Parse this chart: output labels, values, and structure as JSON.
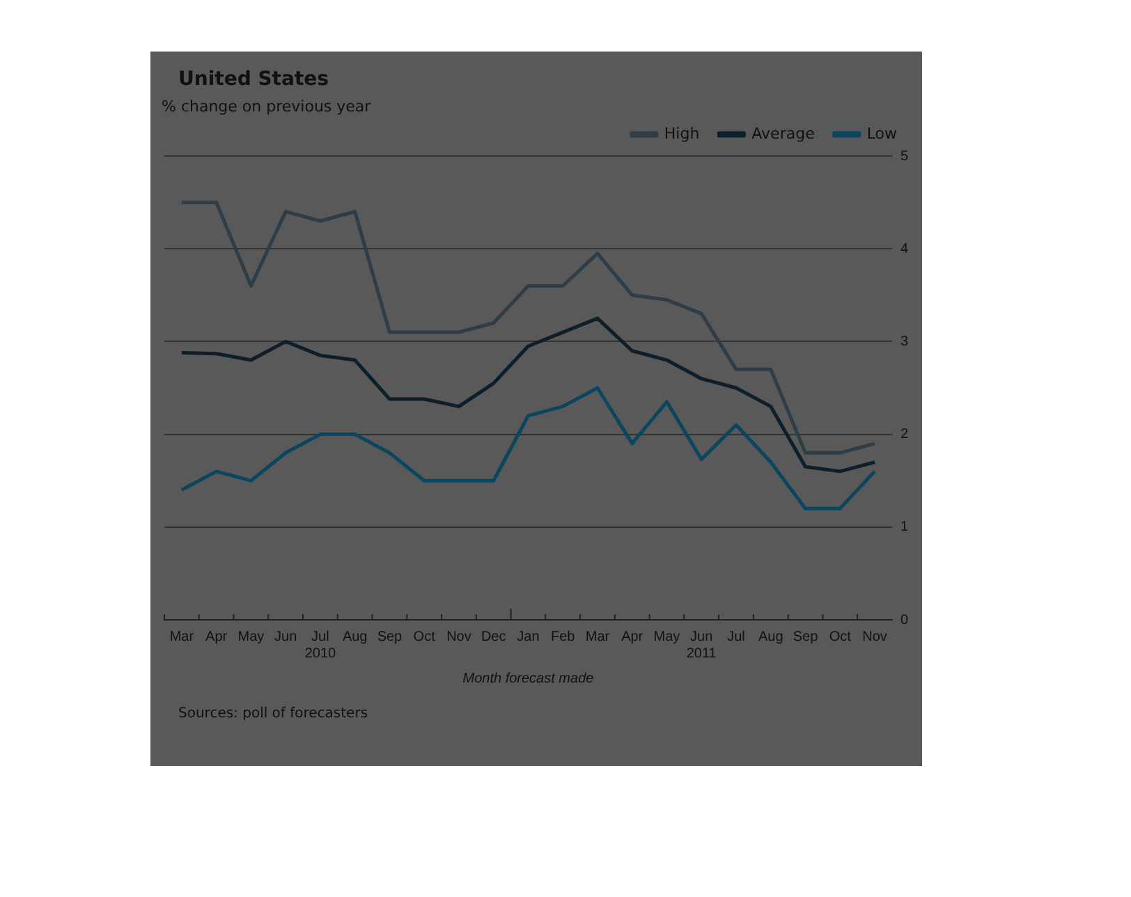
{
  "chart_data": {
    "type": "line",
    "title": "United States",
    "subtitle": "% change on previous year",
    "xlabel": "Month forecast made",
    "categories": [
      "Mar",
      "Apr",
      "May",
      "Jun",
      "Jul\n2010",
      "Aug",
      "Sep",
      "Oct",
      "Nov",
      "Dec",
      "Jan",
      "Feb",
      "Mar",
      "Apr",
      "May",
      "Jun\n2011",
      "Jul",
      "Aug",
      "Sep",
      "Oct",
      "Nov"
    ],
    "series": [
      {
        "name": "High",
        "color": "#2e3d47",
        "values": [
          4.5,
          4.5,
          3.6,
          4.4,
          4.3,
          4.4,
          3.1,
          3.1,
          3.1,
          3.2,
          3.6,
          3.6,
          3.95,
          3.5,
          3.45,
          3.3,
          2.7,
          2.7,
          1.8,
          1.8,
          1.9
        ]
      },
      {
        "name": "Average",
        "color": "#0c1f2a",
        "values": [
          2.88,
          2.87,
          2.8,
          3.0,
          2.85,
          2.8,
          2.38,
          2.38,
          2.3,
          2.55,
          2.95,
          3.1,
          3.25,
          2.9,
          2.8,
          2.6,
          2.5,
          2.3,
          1.65,
          1.6,
          1.7
        ]
      },
      {
        "name": "Low",
        "color": "#0b4660",
        "values": [
          1.4,
          1.6,
          1.5,
          1.8,
          2.0,
          2.0,
          1.8,
          1.5,
          1.5,
          1.5,
          2.2,
          2.3,
          2.5,
          1.9,
          2.35,
          1.73,
          2.1,
          1.7,
          1.2,
          1.2,
          1.6
        ]
      }
    ],
    "ylim": [
      0,
      5
    ],
    "yticks": [
      0,
      1,
      2,
      3,
      4,
      5
    ],
    "grid": "y",
    "legend": "top right",
    "marker": "none",
    "line_style": "solid",
    "annotations": [
      "Sources: poll of forecasters"
    ]
  }
}
